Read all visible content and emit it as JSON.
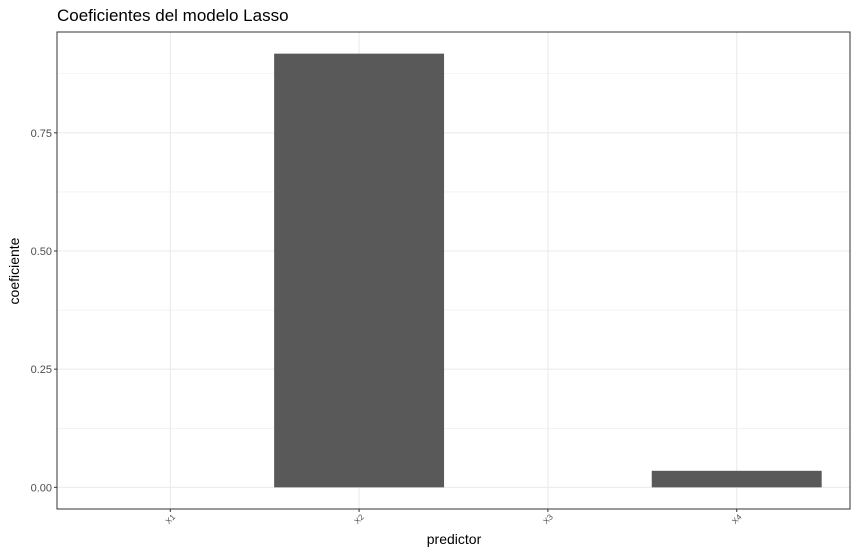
{
  "chart_data": {
    "type": "bar",
    "title": "Coeficientes del modelo Lasso",
    "xlabel": "predictor",
    "ylabel": "coeficiente",
    "categories": [
      "X1",
      "X2",
      "X3",
      "X4"
    ],
    "values": [
      0,
      0.9175,
      0,
      0.035
    ],
    "ylim": [
      -0.0458,
      0.9633
    ],
    "yticks": [
      0.0,
      0.25,
      0.5,
      0.75
    ],
    "ytick_labels": [
      "0.00",
      "0.25",
      "0.50",
      "0.75"
    ],
    "grid": true,
    "bar_color": "#595959",
    "grid_color": "#ebebeb",
    "panel_border_color": "#333333"
  }
}
